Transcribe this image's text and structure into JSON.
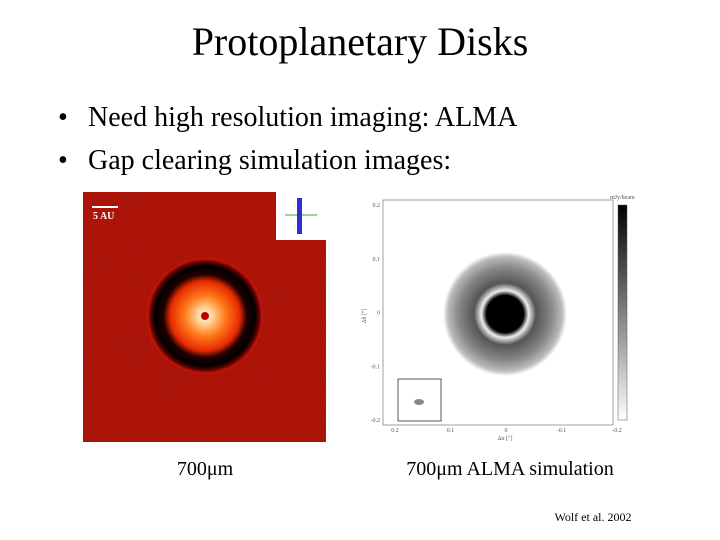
{
  "title": "Protoplanetary Disks",
  "bullets": [
    "Need high resolution imaging: ALMA",
    "Gap clearing simulation images:"
  ],
  "left_image": {
    "scale_label": "5 AU",
    "caption": "700μm"
  },
  "right_image": {
    "colorbar_label": "mJy/beam",
    "y_axis_label": "Δδ [\"]",
    "x_axis_label": "Δα [\"]",
    "y_ticks": [
      "0.2",
      "0.1",
      "0",
      "-0.1",
      "-0.2"
    ],
    "x_ticks": [
      "0.2",
      "0.1",
      "0",
      "-0.1",
      "-0.2"
    ],
    "caption": "700μm ALMA simulation"
  },
  "citation": "Wolf et al. 2002"
}
